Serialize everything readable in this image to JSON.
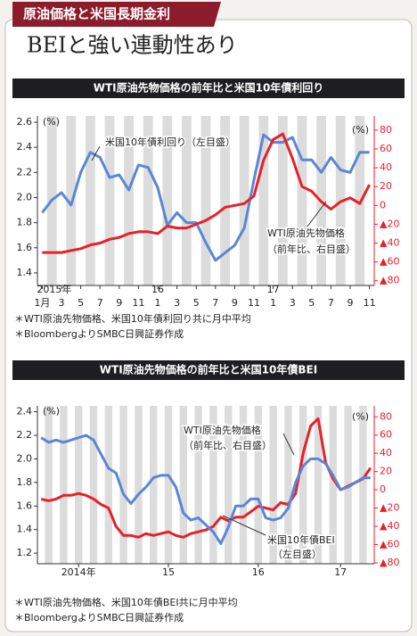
{
  "header": {
    "tag": "原油価格と米国長期金利",
    "title": "BEIと強い連動性あり"
  },
  "chart_data": [
    {
      "type": "line",
      "title": "WTI原油先物価格の前年比と米国10年債利回り",
      "unit_left": "(%)",
      "unit_right": "(%)",
      "year_labels": [
        "2015年",
        "16",
        "17"
      ],
      "categories": [
        "1月",
        null,
        "3",
        null,
        "5",
        null,
        "7",
        null,
        "9",
        null,
        "11",
        null,
        "1",
        null,
        "3",
        null,
        "5",
        null,
        "7",
        null,
        "9",
        null,
        "11",
        null,
        "1",
        null,
        "3",
        null,
        "5",
        null,
        "7",
        null,
        "9",
        null,
        "11"
      ],
      "series": [
        {
          "label": [
            "米国10年債利回り（左目盛）"
          ],
          "color": "#5b86d6",
          "axis": "y",
          "values": [
            1.88,
            1.98,
            2.04,
            1.94,
            2.2,
            2.36,
            2.32,
            2.16,
            2.18,
            2.06,
            2.26,
            2.24,
            2.08,
            1.78,
            1.88,
            1.8,
            1.8,
            1.64,
            1.5,
            1.56,
            1.62,
            1.76,
            2.14,
            2.5,
            2.44,
            2.44,
            2.48,
            2.3,
            2.3,
            2.2,
            2.32,
            2.22,
            2.2,
            2.36,
            2.36
          ]
        },
        {
          "label": [
            "WTI原油先物価格",
            "（前年比、右目盛）"
          ],
          "color": "#e8202a",
          "axis": "y2",
          "values": [
            -50,
            -50,
            -50,
            -48,
            -46,
            -42,
            -40,
            -36,
            -34,
            -30,
            -28,
            -28,
            -30,
            -22,
            -24,
            -24,
            -20,
            -16,
            -10,
            -2,
            0,
            2,
            10,
            48,
            70,
            76,
            50,
            20,
            15,
            4,
            -4,
            4,
            8,
            2,
            22
          ]
        }
      ],
      "ylim": [
        1.3,
        2.65
      ],
      "yticks": [
        {
          "value": 2.6,
          "label": "2.6"
        },
        2.4,
        2.2,
        {
          "value": 2,
          "label": "2.0"
        },
        1.8,
        1.6,
        1.4
      ],
      "y2lim": [
        -85,
        95
      ],
      "y2ticks": [
        80,
        60,
        40,
        20,
        0,
        {
          "value": -20,
          "label": "▲20"
        },
        {
          "value": -40,
          "label": "▲40"
        },
        {
          "value": -60,
          "label": "▲60"
        },
        {
          "value": -80,
          "label": "▲80"
        }
      ],
      "notes": [
        "＊WTI原油先物価格、米国10年債利回り共に月中平均",
        "＊BloombergよりSMBC日興証券作成"
      ]
    },
    {
      "type": "line",
      "title": "WTI原油先物価格の前年比と米国10年債BEI",
      "unit_left": "(%)",
      "unit_right": "(%)",
      "categories": [
        null,
        null,
        null,
        null,
        null,
        "2014年",
        null,
        null,
        null,
        null,
        null,
        null,
        null,
        null,
        null,
        null,
        null,
        "15",
        null,
        null,
        null,
        null,
        null,
        null,
        null,
        null,
        null,
        null,
        null,
        "16",
        null,
        null,
        null,
        null,
        null,
        null,
        null,
        null,
        null,
        null,
        "17",
        null,
        null,
        null,
        null
      ],
      "series": [
        {
          "label": [
            "WTI原油先物価格",
            "（前年比、右目盛）"
          ],
          "color": "#e8202a",
          "axis": "y2",
          "values": [
            -10,
            -12,
            -10,
            -6,
            -6,
            -4,
            -6,
            -10,
            -16,
            -20,
            -40,
            -50,
            -50,
            -52,
            -48,
            -50,
            -48,
            -46,
            -50,
            -52,
            -48,
            -46,
            -44,
            -40,
            -30,
            -34,
            -30,
            -30,
            -24,
            -18,
            -20,
            -22,
            -14,
            -16,
            -4,
            40,
            70,
            78,
            30,
            12,
            0,
            4,
            8,
            12,
            24
          ]
        },
        {
          "label": [
            "米国10年債BEI",
            "（左目盛）"
          ],
          "color": "#5b86d6",
          "axis": "y",
          "values": [
            2.18,
            2.14,
            2.16,
            2.14,
            2.16,
            2.18,
            2.2,
            2.16,
            2.04,
            1.92,
            1.88,
            1.7,
            1.62,
            1.7,
            1.76,
            1.84,
            1.86,
            1.86,
            1.76,
            1.54,
            1.48,
            1.5,
            1.44,
            1.38,
            1.28,
            1.42,
            1.6,
            1.6,
            1.66,
            1.66,
            1.5,
            1.48,
            1.5,
            1.58,
            1.8,
            1.94,
            2,
            2,
            1.96,
            1.86,
            1.74,
            1.76,
            1.8,
            1.84,
            1.84
          ]
        }
      ],
      "ylim": [
        1.11,
        2.45
      ],
      "yticks": [
        2.4,
        2.2,
        {
          "value": 2,
          "label": "2.0"
        },
        1.8,
        1.6,
        1.4,
        1.2
      ],
      "y2lim": [
        -81,
        92
      ],
      "y2ticks": [
        80,
        60,
        40,
        20,
        0,
        {
          "value": -20,
          "label": "▲20"
        },
        {
          "value": -40,
          "label": "▲40"
        },
        {
          "value": -60,
          "label": "▲60"
        },
        {
          "value": -80,
          "label": "▲80"
        }
      ],
      "notes": [
        "＊WTI原油先物価格、米国10年債BEI共に月中平均",
        "＊BloombergよりSMBC日興証券作成"
      ]
    }
  ]
}
